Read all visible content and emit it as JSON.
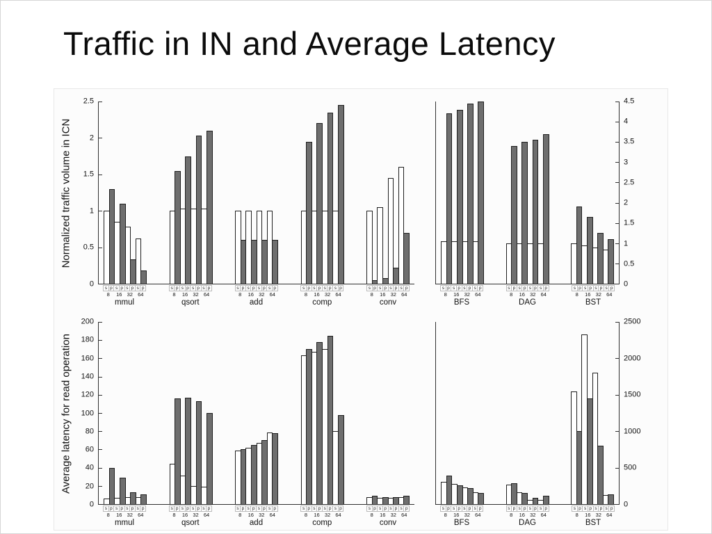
{
  "slide": {
    "title": "Traffic in IN and Average Latency"
  },
  "colors": {
    "bar_s_fill": "#ffffff",
    "bar_p_fill": "#6e6e6e",
    "bar_border": "#1e1e1e",
    "axis": "#2f2f2f",
    "background": "#ffffff"
  },
  "chart_data": [
    {
      "type": "bar",
      "title": "",
      "ylabel": "Normalized traffic volume in ICN",
      "yaxis_side": "left",
      "ylim": [
        0,
        2.5
      ],
      "yticks": [
        0,
        0.5,
        1,
        1.5,
        2,
        2.5
      ],
      "bar_labels": [
        "s",
        "p",
        "s",
        "p",
        "s",
        "p",
        "s",
        "p"
      ],
      "size_labels": [
        "8",
        "16",
        "32",
        "64"
      ],
      "series_legend": {
        "white": "s",
        "gray": "p"
      },
      "groups": [
        {
          "name": "mmul",
          "values": [
            1.0,
            1.3,
            0.85,
            1.1,
            0.78,
            0.33,
            0.62,
            0.18
          ]
        },
        {
          "name": "qsort",
          "values": [
            1.0,
            1.55,
            1.03,
            1.75,
            1.03,
            2.03,
            1.03,
            2.1
          ]
        },
        {
          "name": "add",
          "values": [
            1.0,
            0.6,
            1.0,
            0.6,
            1.0,
            0.6,
            1.0,
            0.6
          ]
        },
        {
          "name": "comp",
          "values": [
            1.0,
            1.95,
            1.0,
            2.2,
            1.0,
            2.35,
            1.0,
            2.45
          ]
        },
        {
          "name": "conv",
          "values": [
            1.0,
            0.05,
            1.05,
            0.08,
            1.45,
            0.22,
            1.6,
            0.7
          ]
        }
      ]
    },
    {
      "type": "bar",
      "title": "",
      "ylabel": "",
      "yaxis_side": "right",
      "ylim": [
        0,
        4.5
      ],
      "yticks": [
        0,
        0.5,
        1,
        1.5,
        2,
        2.5,
        3,
        3.5,
        4,
        4.5
      ],
      "bar_labels": [
        "s",
        "p",
        "s",
        "p",
        "s",
        "p",
        "s",
        "p"
      ],
      "size_labels": [
        "8",
        "16",
        "32",
        "64"
      ],
      "series_legend": {
        "white": "s",
        "gray": "p"
      },
      "groups": [
        {
          "name": "BFS",
          "values": [
            1.05,
            4.2,
            1.05,
            4.3,
            1.05,
            4.45,
            1.05,
            4.5
          ]
        },
        {
          "name": "DAG",
          "values": [
            1.0,
            3.4,
            1.0,
            3.5,
            1.0,
            3.55,
            1.0,
            3.7
          ]
        },
        {
          "name": "BST",
          "values": [
            1.0,
            1.9,
            0.95,
            1.65,
            0.9,
            1.25,
            0.85,
            1.1
          ]
        }
      ]
    },
    {
      "type": "bar",
      "title": "",
      "ylabel": "Average latency for read operation",
      "yaxis_side": "left",
      "ylim": [
        0,
        200
      ],
      "yticks": [
        0,
        20,
        40,
        60,
        80,
        100,
        120,
        140,
        160,
        180,
        200
      ],
      "bar_labels": [
        "s",
        "p",
        "s",
        "p",
        "s",
        "p",
        "s",
        "p"
      ],
      "size_labels": [
        "8",
        "16",
        "32",
        "64"
      ],
      "series_legend": {
        "white": "s",
        "gray": "p"
      },
      "groups": [
        {
          "name": "mmul",
          "values": [
            6,
            40,
            7,
            29,
            8,
            13,
            8,
            11
          ]
        },
        {
          "name": "qsort",
          "values": [
            44,
            116,
            31,
            117,
            20,
            113,
            19,
            100
          ]
        },
        {
          "name": "add",
          "values": [
            59,
            60,
            62,
            65,
            67,
            70,
            79,
            78
          ]
        },
        {
          "name": "comp",
          "values": [
            163,
            170,
            167,
            178,
            170,
            185,
            80,
            98
          ]
        },
        {
          "name": "conv",
          "values": [
            8,
            9,
            7,
            8,
            7,
            8,
            8,
            9
          ]
        }
      ]
    },
    {
      "type": "bar",
      "title": "",
      "ylabel": "",
      "yaxis_side": "right",
      "ylim": [
        0,
        2500
      ],
      "yticks": [
        0,
        500,
        1000,
        1500,
        2000,
        2500
      ],
      "bar_labels": [
        "s",
        "p",
        "s",
        "p",
        "s",
        "p",
        "s",
        "p"
      ],
      "size_labels": [
        "8",
        "16",
        "32",
        "64"
      ],
      "series_legend": {
        "white": "s",
        "gray": "p"
      },
      "groups": [
        {
          "name": "BFS",
          "values": [
            310,
            390,
            280,
            255,
            230,
            215,
            160,
            150
          ]
        },
        {
          "name": "DAG",
          "values": [
            265,
            290,
            165,
            155,
            60,
            85,
            55,
            110
          ]
        },
        {
          "name": "BST",
          "values": [
            1550,
            1000,
            2330,
            1450,
            1800,
            800,
            120,
            130
          ]
        }
      ]
    }
  ]
}
